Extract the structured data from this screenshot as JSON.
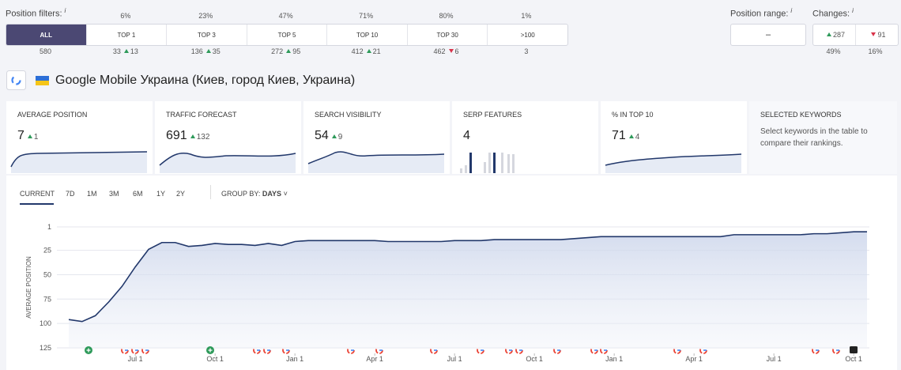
{
  "filters": {
    "label": "Position filters:",
    "info": "i",
    "tabs": [
      {
        "name": "ALL",
        "count": "580"
      },
      {
        "name": "TOP 1",
        "percent": "6%",
        "count": "33",
        "change": "13",
        "direction": "up"
      },
      {
        "name": "TOP 3",
        "percent": "23%",
        "count": "136",
        "change": "35",
        "direction": "up"
      },
      {
        "name": "TOP 5",
        "percent": "47%",
        "count": "272",
        "change": "95",
        "direction": "up"
      },
      {
        "name": "TOP 10",
        "percent": "71%",
        "count": "412",
        "change": "21",
        "direction": "up"
      },
      {
        "name": "TOP 30",
        "percent": "80%",
        "count": "462",
        "change": "6",
        "direction": "down"
      },
      {
        "name": ">100",
        "percent": "1%",
        "count": "3"
      }
    ]
  },
  "position_range": {
    "label": "Position range:",
    "info": "i",
    "value": "–"
  },
  "changes": {
    "label": "Changes:",
    "info": "i",
    "up": "287",
    "down": "91",
    "up_percent": "49%",
    "down_percent": "16%"
  },
  "engine": "Google Mobile Украина (Киев, город Киев, Украина)",
  "cards": [
    {
      "label": "AVERAGE POSITION",
      "value": "7",
      "change": "1"
    },
    {
      "label": "TRAFFIC FORECAST",
      "value": "691",
      "change": "132"
    },
    {
      "label": "SEARCH VISIBILITY",
      "value": "54",
      "change": "9"
    },
    {
      "label": "SERP FEATURES",
      "value": "4"
    },
    {
      "label": "% IN TOP 10",
      "value": "71",
      "change": "4"
    },
    {
      "label": "SELECTED KEYWORDS",
      "text": "Select keywords in the table to compare their rankings."
    }
  ],
  "period_tabs": [
    "CURRENT",
    "7D",
    "1M",
    "3M",
    "6M",
    "1Y",
    "2Y"
  ],
  "group_by": {
    "label": "GROUP BY:",
    "value": "DAYS"
  },
  "chart_data": {
    "type": "line",
    "y_label": "AVERAGE POSITION",
    "color": "#22386b",
    "inverted": true,
    "grid": true,
    "ylim": [
      1,
      125
    ],
    "yticks": [
      1,
      25,
      50,
      75,
      100,
      125
    ],
    "categories": [
      null,
      null,
      null,
      null,
      null,
      "Jul 1",
      null,
      null,
      null,
      null,
      null,
      "Oct 1",
      null,
      null,
      null,
      null,
      null,
      "Jan 1",
      null,
      null,
      null,
      null,
      null,
      "Apr 1",
      null,
      null,
      null,
      null,
      null,
      "Jul 1",
      null,
      null,
      null,
      null,
      null,
      "Oct 1",
      null,
      null,
      null,
      null,
      null,
      "Jan 1",
      null,
      null,
      null,
      null,
      null,
      "Apr 1",
      null,
      null,
      null,
      null,
      null,
      "Jul 1",
      null,
      null,
      null,
      null,
      null,
      "Oct 1",
      null
    ],
    "values": [
      96,
      98,
      92,
      78,
      62,
      42,
      24,
      17,
      17,
      21,
      20,
      18,
      19,
      19,
      20,
      18,
      20,
      16,
      15,
      15,
      15,
      15,
      15,
      15,
      16,
      16,
      16,
      16,
      16,
      15,
      15,
      15,
      14,
      14,
      14,
      14,
      14,
      14,
      13,
      12,
      11,
      11,
      11,
      11,
      11,
      11,
      11,
      11,
      11,
      11,
      9,
      9,
      9,
      9,
      9,
      9,
      8,
      8,
      7,
      6,
      6
    ]
  }
}
